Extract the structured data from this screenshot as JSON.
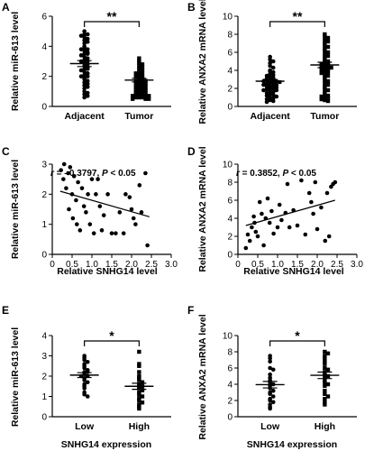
{
  "chart_data": [
    {
      "panel": "A",
      "type": "scatter",
      "ylabel": "Relative miR-613 level",
      "ylim": [
        0,
        6
      ],
      "yticks": [
        0,
        2,
        4,
        6
      ],
      "categories": [
        "Adjacent",
        "Tumor"
      ],
      "markers": [
        "circle",
        "square"
      ],
      "means": [
        2.85,
        1.75
      ],
      "sems": [
        0.2,
        0.12
      ],
      "significance": "**",
      "groups": [
        [
          5.0,
          4.8,
          4.8,
          4.7,
          4.6,
          4.5,
          4.4,
          4.3,
          4.2,
          4.0,
          3.9,
          3.8,
          3.8,
          3.7,
          3.6,
          3.5,
          3.5,
          3.4,
          3.3,
          3.2,
          3.1,
          3.0,
          3.0,
          2.9,
          2.8,
          2.7,
          2.6,
          2.5,
          2.5,
          2.4,
          2.3,
          2.2,
          2.1,
          2.0,
          2.0,
          1.9,
          1.8,
          1.7,
          1.6,
          1.5,
          1.4,
          1.3,
          1.2,
          1.0,
          0.9,
          0.8,
          0.7,
          0.6
        ],
        [
          3.2,
          3.0,
          2.9,
          2.8,
          2.7,
          2.6,
          2.5,
          2.4,
          2.3,
          2.2,
          2.2,
          2.1,
          2.0,
          2.0,
          1.9,
          1.9,
          1.8,
          1.8,
          1.7,
          1.7,
          1.6,
          1.6,
          1.5,
          1.5,
          1.4,
          1.4,
          1.3,
          1.3,
          1.2,
          1.2,
          1.1,
          1.1,
          1.0,
          1.0,
          0.9,
          0.9,
          0.8,
          0.8,
          0.8,
          0.7,
          0.7,
          0.7,
          0.6,
          0.6,
          0.6,
          0.5,
          0.5,
          0.5
        ]
      ]
    },
    {
      "panel": "B",
      "type": "scatter",
      "ylabel": "Relative ANXA2 mRNA level",
      "ylim": [
        0,
        10
      ],
      "yticks": [
        0,
        2,
        4,
        6,
        8,
        10
      ],
      "categories": [
        "Adjacent",
        "Tumor"
      ],
      "markers": [
        "circle",
        "square"
      ],
      "means": [
        2.8,
        4.6
      ],
      "sems": [
        0.2,
        0.3
      ],
      "significance": "**",
      "groups": [
        [
          5.5,
          5.2,
          5.0,
          4.8,
          4.5,
          4.3,
          4.0,
          3.9,
          3.8,
          3.6,
          3.5,
          3.4,
          3.3,
          3.2,
          3.1,
          3.0,
          3.0,
          2.9,
          2.8,
          2.8,
          2.7,
          2.6,
          2.6,
          2.5,
          2.4,
          2.4,
          2.3,
          2.2,
          2.2,
          2.1,
          2.0,
          2.0,
          1.9,
          1.8,
          1.8,
          1.7,
          1.6,
          1.5,
          1.4,
          1.3,
          1.2,
          1.1,
          1.0,
          0.9,
          0.8,
          0.7,
          0.6,
          0.5
        ],
        [
          8.0,
          7.8,
          7.6,
          7.4,
          7.2,
          7.0,
          6.8,
          6.6,
          6.4,
          6.2,
          6.0,
          5.8,
          5.6,
          5.4,
          5.2,
          5.0,
          4.9,
          4.8,
          4.7,
          4.6,
          4.5,
          4.4,
          4.3,
          4.2,
          4.1,
          4.0,
          3.9,
          3.8,
          3.7,
          3.6,
          3.4,
          3.2,
          3.0,
          2.8,
          2.6,
          2.4,
          2.2,
          2.0,
          1.8,
          1.6,
          1.4,
          1.2,
          1.1,
          1.0,
          0.9,
          0.8,
          0.7,
          0.6
        ]
      ]
    },
    {
      "panel": "C",
      "type": "scatter",
      "xlabel": "Relative SNHG14 level",
      "ylabel": "Relative miR-613 level",
      "xlim": [
        0,
        3.0
      ],
      "ylim": [
        0,
        3
      ],
      "xticks": [
        "0",
        "0.5",
        "1.0",
        "1.5",
        "2.0",
        "2.5",
        "3.0"
      ],
      "yticks": [
        0,
        1,
        2,
        3
      ],
      "annotation_r": "r",
      "annotation_r_value": " = –0.3797, ",
      "annotation_p": "P",
      "annotation_p_value": " < 0.05",
      "fit_line": [
        [
          0.2,
          2.1
        ],
        [
          2.45,
          1.25
        ]
      ],
      "points": [
        [
          0.22,
          2.8
        ],
        [
          0.28,
          2.5
        ],
        [
          0.3,
          3.0
        ],
        [
          0.35,
          2.2
        ],
        [
          0.4,
          2.7
        ],
        [
          0.42,
          1.5
        ],
        [
          0.45,
          2.9
        ],
        [
          0.5,
          2.0
        ],
        [
          0.52,
          1.2
        ],
        [
          0.55,
          2.6
        ],
        [
          0.6,
          1.8
        ],
        [
          0.62,
          1.0
        ],
        [
          0.65,
          2.4
        ],
        [
          0.7,
          0.8
        ],
        [
          0.75,
          2.2
        ],
        [
          0.8,
          1.6
        ],
        [
          0.85,
          1.4
        ],
        [
          0.9,
          2.0
        ],
        [
          0.95,
          1.0
        ],
        [
          1.0,
          2.5
        ],
        [
          1.05,
          0.7
        ],
        [
          1.1,
          2.0
        ],
        [
          1.15,
          2.5
        ],
        [
          1.2,
          1.6
        ],
        [
          1.25,
          0.8
        ],
        [
          1.3,
          1.3
        ],
        [
          1.4,
          2.0
        ],
        [
          1.5,
          0.7
        ],
        [
          1.6,
          0.7
        ],
        [
          1.7,
          1.4
        ],
        [
          1.8,
          0.7
        ],
        [
          1.85,
          2.0
        ],
        [
          1.95,
          1.9
        ],
        [
          2.0,
          1.5
        ],
        [
          2.05,
          1.2
        ],
        [
          2.1,
          1.0
        ],
        [
          2.2,
          2.3
        ],
        [
          2.25,
          1.4
        ],
        [
          2.35,
          2.7
        ],
        [
          2.4,
          0.3
        ]
      ]
    },
    {
      "panel": "D",
      "type": "scatter",
      "xlabel": "Relative SNHG14 level",
      "ylabel": "Relative ANXA2 mRNA level",
      "xlim": [
        0,
        3.0
      ],
      "ylim": [
        0,
        10
      ],
      "xticks": [
        "0",
        "0.5",
        "1.0",
        "1.5",
        "2.0",
        "2.5",
        "3.0"
      ],
      "yticks": [
        0,
        2,
        4,
        6,
        8,
        10
      ],
      "annotation_r": "r",
      "annotation_r_value": " = 0.3852, ",
      "annotation_p": "P",
      "annotation_p_value": " < 0.05",
      "fit_line": [
        [
          0.2,
          3.2
        ],
        [
          2.45,
          6.0
        ]
      ],
      "points": [
        [
          0.2,
          0.7
        ],
        [
          0.25,
          2.2
        ],
        [
          0.3,
          1.5
        ],
        [
          0.35,
          3.0
        ],
        [
          0.4,
          4.2
        ],
        [
          0.42,
          3.5
        ],
        [
          0.45,
          2.5
        ],
        [
          0.5,
          2.0
        ],
        [
          0.55,
          5.8
        ],
        [
          0.6,
          4.5
        ],
        [
          0.65,
          1.0
        ],
        [
          0.7,
          4.0
        ],
        [
          0.75,
          6.2
        ],
        [
          0.8,
          3.5
        ],
        [
          0.85,
          4.8
        ],
        [
          0.9,
          2.3
        ],
        [
          1.0,
          3.0
        ],
        [
          1.05,
          5.5
        ],
        [
          1.1,
          3.8
        ],
        [
          1.2,
          4.6
        ],
        [
          1.25,
          7.8
        ],
        [
          1.3,
          3.0
        ],
        [
          1.4,
          4.9
        ],
        [
          1.5,
          3.2
        ],
        [
          1.6,
          8.2
        ],
        [
          1.7,
          2.2
        ],
        [
          1.8,
          6.8
        ],
        [
          1.85,
          5.8
        ],
        [
          1.9,
          4.5
        ],
        [
          1.95,
          8.0
        ],
        [
          2.0,
          2.8
        ],
        [
          2.1,
          5.2
        ],
        [
          2.2,
          1.5
        ],
        [
          2.25,
          6.8
        ],
        [
          2.3,
          2.0
        ],
        [
          2.35,
          7.5
        ],
        [
          2.4,
          7.8
        ],
        [
          2.45,
          8.0
        ]
      ]
    },
    {
      "panel": "E",
      "type": "scatter",
      "xlabel": "SNHG14 expression",
      "ylabel": "Relative miR-613 level",
      "ylim": [
        0,
        4
      ],
      "yticks": [
        0,
        1,
        2,
        3,
        4
      ],
      "categories": [
        "Low",
        "High"
      ],
      "markers": [
        "circle",
        "square"
      ],
      "means": [
        2.05,
        1.5
      ],
      "sems": [
        0.12,
        0.15
      ],
      "significance": "*",
      "groups": [
        [
          3.0,
          2.9,
          2.8,
          2.7,
          2.6,
          2.5,
          2.4,
          2.3,
          2.2,
          2.2,
          2.1,
          2.0,
          2.0,
          1.9,
          1.8,
          1.7,
          1.6,
          1.5,
          1.4,
          1.2,
          1.1,
          1.0
        ],
        [
          3.2,
          2.6,
          2.5,
          2.2,
          2.0,
          1.9,
          1.8,
          1.7,
          1.6,
          1.5,
          1.5,
          1.4,
          1.3,
          1.2,
          1.1,
          1.0,
          0.9,
          0.8,
          0.7,
          0.6,
          0.5,
          0.4
        ]
      ]
    },
    {
      "panel": "F",
      "type": "scatter",
      "xlabel": "SNHG14 expression",
      "ylabel": "Relative ANXA2 mRNA level",
      "ylim": [
        0,
        10
      ],
      "yticks": [
        0,
        2,
        4,
        6,
        8,
        10
      ],
      "categories": [
        "Low",
        "High"
      ],
      "markers": [
        "circle",
        "square"
      ],
      "means": [
        3.95,
        5.1
      ],
      "sems": [
        0.4,
        0.4
      ],
      "significance": "*",
      "groups": [
        [
          7.5,
          7.2,
          6.8,
          6.0,
          5.8,
          5.2,
          4.8,
          4.5,
          4.2,
          4.0,
          3.8,
          3.5,
          3.2,
          3.0,
          2.8,
          2.5,
          2.2,
          2.0,
          1.8,
          1.5,
          1.2,
          1.0
        ],
        [
          8.0,
          7.8,
          7.5,
          7.2,
          6.8,
          6.5,
          6.0,
          5.8,
          5.5,
          5.2,
          5.0,
          4.8,
          4.5,
          4.2,
          4.0,
          3.8,
          3.2,
          2.8,
          2.5,
          2.2,
          1.8,
          1.5
        ]
      ]
    }
  ]
}
